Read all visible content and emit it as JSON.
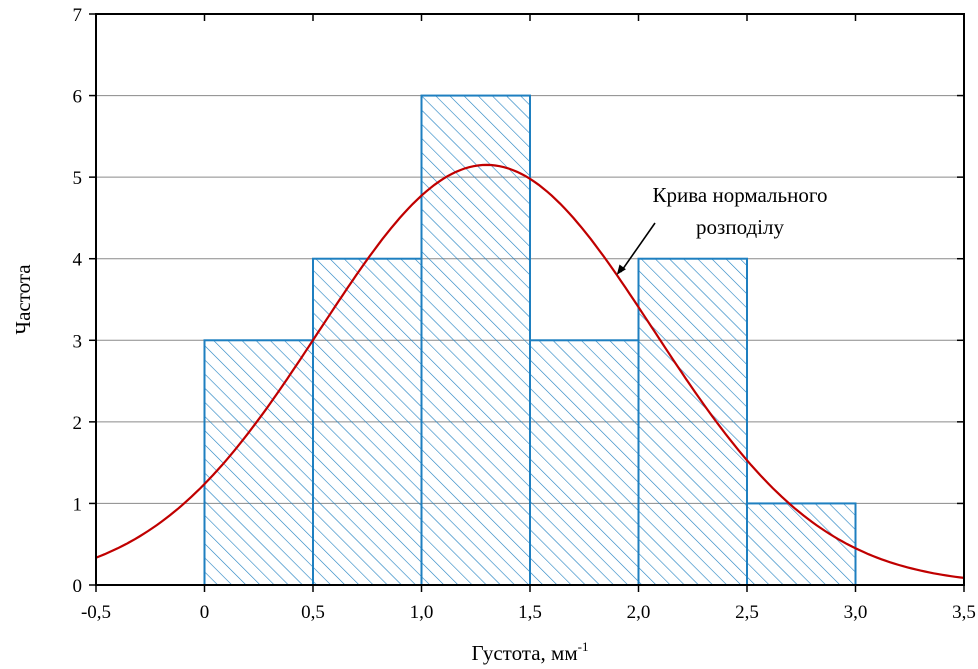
{
  "chart_data": {
    "type": "bar",
    "subtype": "histogram-with-normal-curve",
    "title": "",
    "xlabel": "Густота, мм",
    "xlabel_superscript": "-1",
    "ylabel": "Частота",
    "xlim": [
      -0.5,
      3.5
    ],
    "ylim": [
      0,
      7
    ],
    "x_ticks": [
      -0.5,
      0,
      0.5,
      1.0,
      1.5,
      2.0,
      2.5,
      3.0,
      3.5
    ],
    "x_tick_labels": [
      "-0,5",
      "0",
      "0,5",
      "1,0",
      "1,5",
      "2,0",
      "2,5",
      "3,0",
      "3,5"
    ],
    "y_ticks": [
      0,
      1,
      2,
      3,
      4,
      5,
      6,
      7
    ],
    "y_tick_labels": [
      "0",
      "1",
      "2",
      "3",
      "4",
      "5",
      "6",
      "7"
    ],
    "grid": "horizontal",
    "bins": [
      {
        "x0": 0.0,
        "x1": 0.5,
        "value": 3
      },
      {
        "x0": 0.5,
        "x1": 1.0,
        "value": 4
      },
      {
        "x0": 1.0,
        "x1": 1.5,
        "value": 6
      },
      {
        "x0": 1.5,
        "x1": 2.0,
        "value": 3
      },
      {
        "x0": 2.0,
        "x1": 2.5,
        "value": 4
      },
      {
        "x0": 2.5,
        "x1": 3.0,
        "value": 1
      }
    ],
    "bar_color": "#1e7fc0",
    "bar_fill": "diagonal-hatch",
    "curve": {
      "type": "normal",
      "mean": 1.3,
      "sd": 0.77,
      "peak": 5.15,
      "color": "#c00000"
    },
    "annotation": {
      "line1": "Крива нормального",
      "line2": "розподілу",
      "arrow_target_x": 1.9
    }
  }
}
